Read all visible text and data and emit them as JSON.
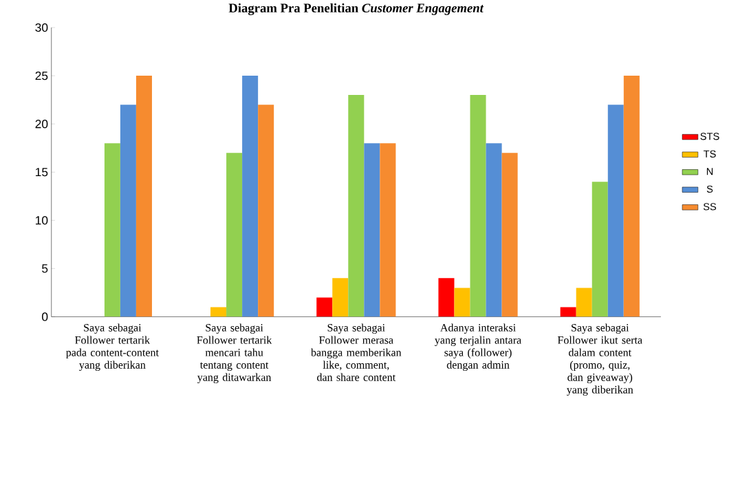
{
  "chart_data": {
    "type": "bar",
    "title": "Diagram Pra Penelitian *Customer Engagement*",
    "categories": [
      "Saya sebagai Follower tertarik pada content-content yang diberikan",
      "Saya sebagai Follower tertarik mencari tahu tentang content yang ditawarkan",
      "Saya sebagai Follower merasa bangga memberikan like, comment, dan share content",
      "Adanya interaksi yang terjalin antara saya (follower) dengan admin",
      "Saya sebagai Follower ikut serta dalam content (promo, quiz, dan giveaway) yang diberikan"
    ],
    "series": [
      {
        "name": "STS",
        "color": "#ff0000",
        "values": [
          0,
          0,
          2,
          4,
          1
        ]
      },
      {
        "name": "TS",
        "color": "#ffc000",
        "values": [
          0,
          1,
          4,
          3,
          3
        ]
      },
      {
        "name": "N",
        "color": "#92d050",
        "values": [
          18,
          17,
          23,
          23,
          14
        ]
      },
      {
        "name": "S",
        "color": "#558ed5",
        "values": [
          22,
          25,
          18,
          18,
          22
        ]
      },
      {
        "name": "SS",
        "color": "#f68b2f",
        "values": [
          25,
          22,
          18,
          17,
          25
        ]
      }
    ],
    "ylim": [
      0,
      30
    ],
    "yticks": [
      0,
      5,
      10,
      15,
      20,
      25,
      30
    ],
    "grid": false,
    "legend": "right"
  }
}
